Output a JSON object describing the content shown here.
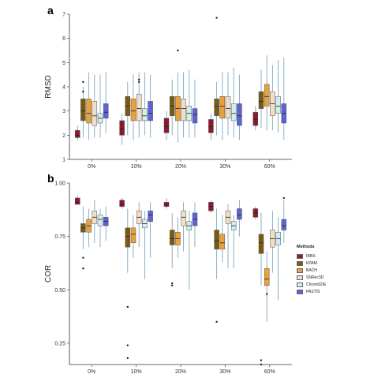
{
  "figure": {
    "panel_a_label": "a",
    "panel_b_label": "b",
    "legend_title": "Methods"
  },
  "colors": {
    "IRBX": "#8B1A2C",
    "KPAM": "#7A5A12",
    "BACH": "#E9A23A",
    "SNRec3D": "#F2DEC4",
    "ChromSDE": "#CFEFF3",
    "PASTIS": "#5B63D6"
  },
  "chart_data": [
    {
      "type": "box",
      "panel": "a",
      "ylabel": "RMSD",
      "xlabel": "",
      "ylim": [
        1,
        7
      ],
      "yticks": [
        1,
        2,
        3,
        4,
        5,
        6,
        7
      ],
      "grid": false,
      "categories": [
        "0%",
        "10%",
        "20%",
        "30%",
        "60%"
      ],
      "series": [
        {
          "name": "IRBX",
          "boxes": [
            {
              "lw": 1.8,
              "q1": 1.9,
              "med": 2.0,
              "q3": 2.2,
              "hw": 2.4
            },
            {
              "lw": 1.6,
              "q1": 2.0,
              "med": 2.25,
              "q3": 2.6,
              "hw": 2.9
            },
            {
              "lw": 1.8,
              "q1": 2.1,
              "med": 2.35,
              "q3": 2.7,
              "hw": 3.0
            },
            {
              "lw": 1.8,
              "q1": 2.1,
              "med": 2.35,
              "q3": 2.65,
              "hw": 2.9
            },
            {
              "lw": 2.2,
              "q1": 2.4,
              "med": 2.65,
              "q3": 2.95,
              "hw": 3.2
            }
          ]
        },
        {
          "name": "KPAM",
          "boxes": [
            {
              "lw": 1.9,
              "q1": 2.6,
              "med": 3.0,
              "q3": 3.5,
              "hw": 4.0,
              "out": [
                4.2,
                3.8
              ]
            },
            {
              "lw": 2.0,
              "q1": 2.8,
              "med": 3.2,
              "q3": 3.6,
              "hw": 4.2
            },
            {
              "lw": 2.0,
              "q1": 2.8,
              "med": 3.2,
              "q3": 3.6,
              "hw": 4.3
            },
            {
              "lw": 2.0,
              "q1": 2.8,
              "med": 3.2,
              "q3": 3.5,
              "hw": 4.2,
              "out": [
                6.85
              ]
            },
            {
              "lw": 2.3,
              "q1": 3.1,
              "med": 3.4,
              "q3": 3.8,
              "hw": 4.7
            }
          ]
        },
        {
          "name": "BACH",
          "boxes": [
            {
              "lw": 1.8,
              "q1": 2.5,
              "med": 2.9,
              "q3": 3.5,
              "hw": 4.6
            },
            {
              "lw": 1.8,
              "q1": 2.6,
              "med": 3.0,
              "q3": 3.5,
              "hw": 4.5
            },
            {
              "lw": 1.7,
              "q1": 2.6,
              "med": 3.1,
              "q3": 3.6,
              "hw": 4.6,
              "out": [
                5.5
              ]
            },
            {
              "lw": 1.8,
              "q1": 2.7,
              "med": 3.2,
              "q3": 3.6,
              "hw": 4.6
            },
            {
              "lw": 2.2,
              "q1": 3.2,
              "med": 3.6,
              "q3": 4.1,
              "hw": 5.3
            }
          ]
        },
        {
          "name": "SNRec3D",
          "boxes": [
            {
              "lw": 1.9,
              "q1": 2.4,
              "med": 2.8,
              "q3": 3.4,
              "hw": 4.5
            },
            {
              "lw": 1.9,
              "q1": 2.6,
              "med": 3.1,
              "q3": 3.7,
              "hw": 4.6,
              "out": [
                4.2,
                4.3
              ]
            },
            {
              "lw": 1.9,
              "q1": 2.6,
              "med": 3.1,
              "q3": 3.5,
              "hw": 4.6
            },
            {
              "lw": 2.0,
              "q1": 2.7,
              "med": 3.1,
              "q3": 3.6,
              "hw": 4.6
            },
            {
              "lw": 2.2,
              "q1": 2.8,
              "med": 3.3,
              "q3": 3.8,
              "hw": 4.9
            }
          ]
        },
        {
          "name": "ChromSDE",
          "boxes": [
            {
              "lw": 1.9,
              "q1": 2.5,
              "med": 2.7,
              "q3": 2.9,
              "hw": 4.5
            },
            {
              "lw": 2.0,
              "q1": 2.6,
              "med": 2.8,
              "q3": 3.1,
              "hw": 4.6
            },
            {
              "lw": 1.9,
              "q1": 2.6,
              "med": 2.9,
              "q3": 3.2,
              "hw": 4.7
            },
            {
              "lw": 1.9,
              "q1": 2.6,
              "med": 2.9,
              "q3": 3.3,
              "hw": 4.8
            },
            {
              "lw": 2.1,
              "q1": 2.9,
              "med": 3.2,
              "q3": 3.6,
              "hw": 5.1
            }
          ]
        },
        {
          "name": "PASTIS",
          "boxes": [
            {
              "lw": 2.1,
              "q1": 2.7,
              "med": 2.95,
              "q3": 3.3,
              "hw": 4.6
            },
            {
              "lw": 1.9,
              "q1": 2.6,
              "med": 2.9,
              "q3": 3.4,
              "hw": 4.5
            },
            {
              "lw": 1.9,
              "q1": 2.5,
              "med": 2.85,
              "q3": 3.1,
              "hw": 4.3
            },
            {
              "lw": 1.8,
              "q1": 2.4,
              "med": 2.8,
              "q3": 3.3,
              "hw": 4.5
            },
            {
              "lw": 1.8,
              "q1": 2.5,
              "med": 2.9,
              "q3": 3.3,
              "hw": 5.2
            }
          ]
        }
      ]
    },
    {
      "type": "box",
      "panel": "b",
      "ylabel": "COR",
      "xlabel": "",
      "ylim": [
        0.15,
        1.0
      ],
      "yticks": [
        0.25,
        0.5,
        0.75,
        1.0
      ],
      "ytick_labels": [
        "0.25",
        "0.50",
        "0.75",
        "1.00"
      ],
      "grid": false,
      "categories": [
        "0%",
        "10%",
        "20%",
        "30%",
        "60%"
      ],
      "legend_position": "right",
      "series": [
        {
          "name": "IRBX",
          "boxes": [
            {
              "lw": 0.9,
              "q1": 0.9,
              "med": 0.91,
              "q3": 0.93,
              "hw": 0.94
            },
            {
              "lw": 0.88,
              "q1": 0.89,
              "med": 0.9,
              "q3": 0.92,
              "hw": 0.93
            },
            {
              "lw": 0.88,
              "q1": 0.89,
              "med": 0.9,
              "q3": 0.91,
              "hw": 0.93
            },
            {
              "lw": 0.86,
              "q1": 0.87,
              "med": 0.89,
              "q3": 0.91,
              "hw": 0.92
            },
            {
              "lw": 0.83,
              "q1": 0.84,
              "med": 0.86,
              "q3": 0.88,
              "hw": 0.89
            }
          ]
        },
        {
          "name": "KPAM",
          "boxes": [
            {
              "lw": 0.69,
              "q1": 0.77,
              "med": 0.79,
              "q3": 0.81,
              "hw": 0.89,
              "out": [
                0.65,
                0.6
              ]
            },
            {
              "lw": 0.58,
              "q1": 0.7,
              "med": 0.75,
              "q3": 0.79,
              "hw": 0.88,
              "out": [
                0.42,
                0.24,
                0.18
              ]
            },
            {
              "lw": 0.6,
              "q1": 0.71,
              "med": 0.74,
              "q3": 0.78,
              "hw": 0.86,
              "out": [
                0.53,
                0.52
              ]
            },
            {
              "lw": 0.55,
              "q1": 0.69,
              "med": 0.73,
              "q3": 0.78,
              "hw": 0.88,
              "out": [
                0.35
              ]
            },
            {
              "lw": 0.52,
              "q1": 0.67,
              "med": 0.72,
              "q3": 0.76,
              "hw": 0.86,
              "out": [
                0.17,
                0.15
              ]
            }
          ]
        },
        {
          "name": "BACH",
          "boxes": [
            {
              "lw": 0.7,
              "q1": 0.77,
              "med": 0.8,
              "q3": 0.83,
              "hw": 0.88
            },
            {
              "lw": 0.65,
              "q1": 0.72,
              "med": 0.76,
              "q3": 0.79,
              "hw": 0.85
            },
            {
              "lw": 0.65,
              "q1": 0.71,
              "med": 0.74,
              "q3": 0.77,
              "hw": 0.84
            },
            {
              "lw": 0.63,
              "q1": 0.69,
              "med": 0.72,
              "q3": 0.76,
              "hw": 0.85
            },
            {
              "lw": 0.35,
              "q1": 0.52,
              "med": 0.55,
              "q3": 0.6,
              "hw": 0.68,
              "out": [
                0.48
              ]
            }
          ]
        },
        {
          "name": "SNRec3D",
          "boxes": [
            {
              "lw": 0.72,
              "q1": 0.81,
              "med": 0.84,
              "q3": 0.87,
              "hw": 0.92
            },
            {
              "lw": 0.7,
              "q1": 0.81,
              "med": 0.84,
              "q3": 0.87,
              "hw": 0.91
            },
            {
              "lw": 0.68,
              "q1": 0.8,
              "med": 0.84,
              "q3": 0.87,
              "hw": 0.91
            },
            {
              "lw": 0.6,
              "q1": 0.81,
              "med": 0.84,
              "q3": 0.87,
              "hw": 0.9
            },
            {
              "lw": 0.58,
              "q1": 0.7,
              "med": 0.74,
              "q3": 0.78,
              "hw": 0.87
            }
          ]
        },
        {
          "name": "ChromSDE",
          "boxes": [
            {
              "lw": 0.7,
              "q1": 0.8,
              "med": 0.83,
              "q3": 0.85,
              "hw": 0.88
            },
            {
              "lw": 0.55,
              "q1": 0.79,
              "med": 0.81,
              "q3": 0.83,
              "hw": 0.87
            },
            {
              "lw": 0.5,
              "q1": 0.78,
              "med": 0.8,
              "q3": 0.82,
              "hw": 0.87
            },
            {
              "lw": 0.6,
              "q1": 0.78,
              "med": 0.8,
              "q3": 0.82,
              "hw": 0.85
            },
            {
              "lw": 0.45,
              "q1": 0.71,
              "med": 0.74,
              "q3": 0.77,
              "hw": 0.84
            }
          ]
        },
        {
          "name": "PASTIS",
          "boxes": [
            {
              "lw": 0.73,
              "q1": 0.8,
              "med": 0.82,
              "q3": 0.84,
              "hw": 0.89
            },
            {
              "lw": 0.65,
              "q1": 0.82,
              "med": 0.85,
              "q3": 0.87,
              "hw": 0.91
            },
            {
              "lw": 0.7,
              "q1": 0.8,
              "med": 0.83,
              "q3": 0.86,
              "hw": 0.91
            },
            {
              "lw": 0.75,
              "q1": 0.83,
              "med": 0.85,
              "q3": 0.88,
              "hw": 0.92
            },
            {
              "lw": 0.72,
              "q1": 0.78,
              "med": 0.8,
              "q3": 0.83,
              "hw": 0.92,
              "out": [
                0.93
              ]
            }
          ]
        }
      ]
    }
  ]
}
